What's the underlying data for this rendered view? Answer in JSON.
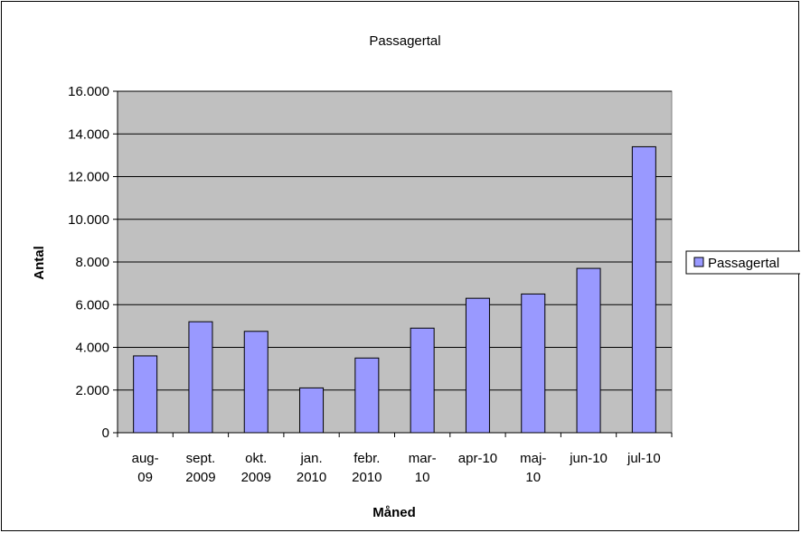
{
  "chart_data": {
    "type": "bar",
    "title": "Passagertal",
    "xlabel": "Måned",
    "ylabel": "Antal",
    "categories": [
      [
        "aug-",
        "09"
      ],
      [
        "sept.",
        "2009"
      ],
      [
        "okt.",
        "2009"
      ],
      [
        "jan.",
        "2010"
      ],
      [
        "febr.",
        "2010"
      ],
      [
        "mar-",
        "10"
      ],
      [
        "apr-10"
      ],
      [
        "maj-",
        "10"
      ],
      [
        "jun-10"
      ],
      [
        "jul-10"
      ]
    ],
    "series": [
      {
        "name": "Passagertal",
        "values": [
          3600,
          5200,
          4750,
          2100,
          3500,
          4900,
          6300,
          6500,
          7700,
          13400
        ]
      }
    ],
    "ylim": [
      0,
      16000
    ],
    "yticks": [
      0,
      2000,
      4000,
      6000,
      8000,
      10000,
      12000,
      14000,
      16000
    ],
    "ytick_labels": [
      "0",
      "2.000",
      "4.000",
      "6.000",
      "8.000",
      "10.000",
      "12.000",
      "14.000",
      "16.000"
    ],
    "grid": true,
    "legend": "right",
    "colors": {
      "plot_area": "#c0c0c0",
      "bar_fill": "#9999ff",
      "bar_stroke": "#000000",
      "gridline": "#000000"
    }
  }
}
